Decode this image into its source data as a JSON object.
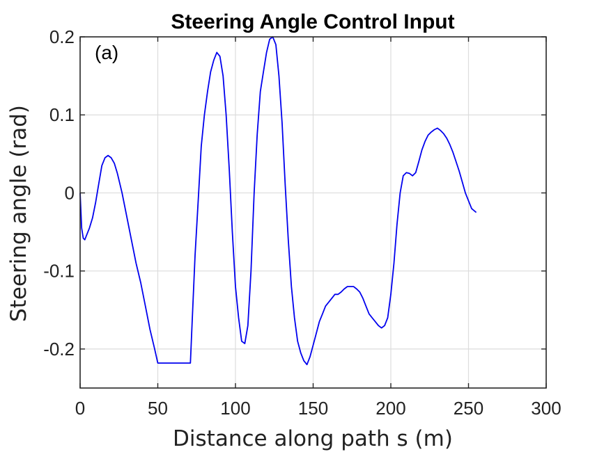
{
  "chart_data": {
    "type": "line",
    "title": "Steering Angle Control Input",
    "xlabel": "Distance along path s (m)",
    "ylabel": "Steering angle (rad)",
    "annotation": "(a)",
    "xlim": [
      0,
      300
    ],
    "ylim": [
      -0.25,
      0.2
    ],
    "xticks": [
      0,
      50,
      100,
      150,
      200,
      250,
      300
    ],
    "yticks": [
      -0.2,
      -0.1,
      0,
      0.1,
      0.2
    ],
    "xtick_labels": [
      "0",
      "50",
      "100",
      "150",
      "200",
      "250",
      "300"
    ],
    "ytick_labels": [
      "-0.2",
      "-0.1",
      "0",
      "0.1",
      "0.2"
    ],
    "grid": true,
    "line_color": "#0000ee",
    "series": [
      {
        "x": [
          0,
          1,
          2,
          3,
          4,
          6,
          8,
          10,
          12,
          14,
          16,
          18,
          20,
          22,
          24,
          27,
          30,
          33,
          36,
          39,
          42,
          45,
          48,
          50,
          55,
          60,
          65,
          70,
          71,
          72,
          74,
          76,
          78,
          80,
          82,
          84,
          86,
          88,
          90,
          92,
          94,
          96,
          98,
          100,
          102,
          104,
          106,
          108,
          110,
          112,
          114,
          116,
          118,
          120,
          122,
          124,
          126,
          128,
          130,
          132,
          134,
          136,
          138,
          140,
          142,
          144,
          146,
          148,
          150,
          152,
          154,
          156,
          158,
          160,
          162,
          164,
          166,
          168,
          170,
          172,
          174,
          176,
          178,
          180,
          182,
          184,
          186,
          188,
          190,
          192,
          194,
          196,
          198,
          200,
          202,
          204,
          206,
          208,
          210,
          212,
          214,
          216,
          218,
          220,
          222,
          224,
          226,
          228,
          230,
          232,
          234,
          236,
          238,
          240,
          242,
          244,
          246,
          248,
          250,
          252,
          255
        ],
        "y": [
          0.0,
          -0.045,
          -0.058,
          -0.06,
          -0.055,
          -0.045,
          -0.032,
          -0.012,
          0.012,
          0.035,
          0.045,
          0.048,
          0.045,
          0.038,
          0.025,
          0.0,
          -0.03,
          -0.06,
          -0.09,
          -0.115,
          -0.145,
          -0.175,
          -0.2,
          -0.218,
          -0.218,
          -0.218,
          -0.218,
          -0.218,
          -0.218,
          -0.17,
          -0.08,
          -0.01,
          0.06,
          0.1,
          0.13,
          0.155,
          0.17,
          0.18,
          0.175,
          0.15,
          0.1,
          0.03,
          -0.05,
          -0.12,
          -0.16,
          -0.19,
          -0.193,
          -0.17,
          -0.1,
          0.0,
          0.075,
          0.13,
          0.155,
          0.18,
          0.197,
          0.2,
          0.19,
          0.15,
          0.09,
          0.01,
          -0.06,
          -0.12,
          -0.16,
          -0.19,
          -0.205,
          -0.215,
          -0.22,
          -0.21,
          -0.195,
          -0.18,
          -0.165,
          -0.155,
          -0.145,
          -0.14,
          -0.135,
          -0.13,
          -0.13,
          -0.127,
          -0.123,
          -0.12,
          -0.12,
          -0.12,
          -0.123,
          -0.127,
          -0.135,
          -0.145,
          -0.155,
          -0.16,
          -0.165,
          -0.17,
          -0.173,
          -0.17,
          -0.16,
          -0.13,
          -0.09,
          -0.04,
          0.0,
          0.022,
          0.026,
          0.025,
          0.022,
          0.026,
          0.04,
          0.055,
          0.066,
          0.074,
          0.078,
          0.081,
          0.083,
          0.08,
          0.076,
          0.07,
          0.062,
          0.052,
          0.04,
          0.028,
          0.014,
          0.0,
          -0.01,
          -0.02,
          -0.025
        ]
      }
    ]
  }
}
